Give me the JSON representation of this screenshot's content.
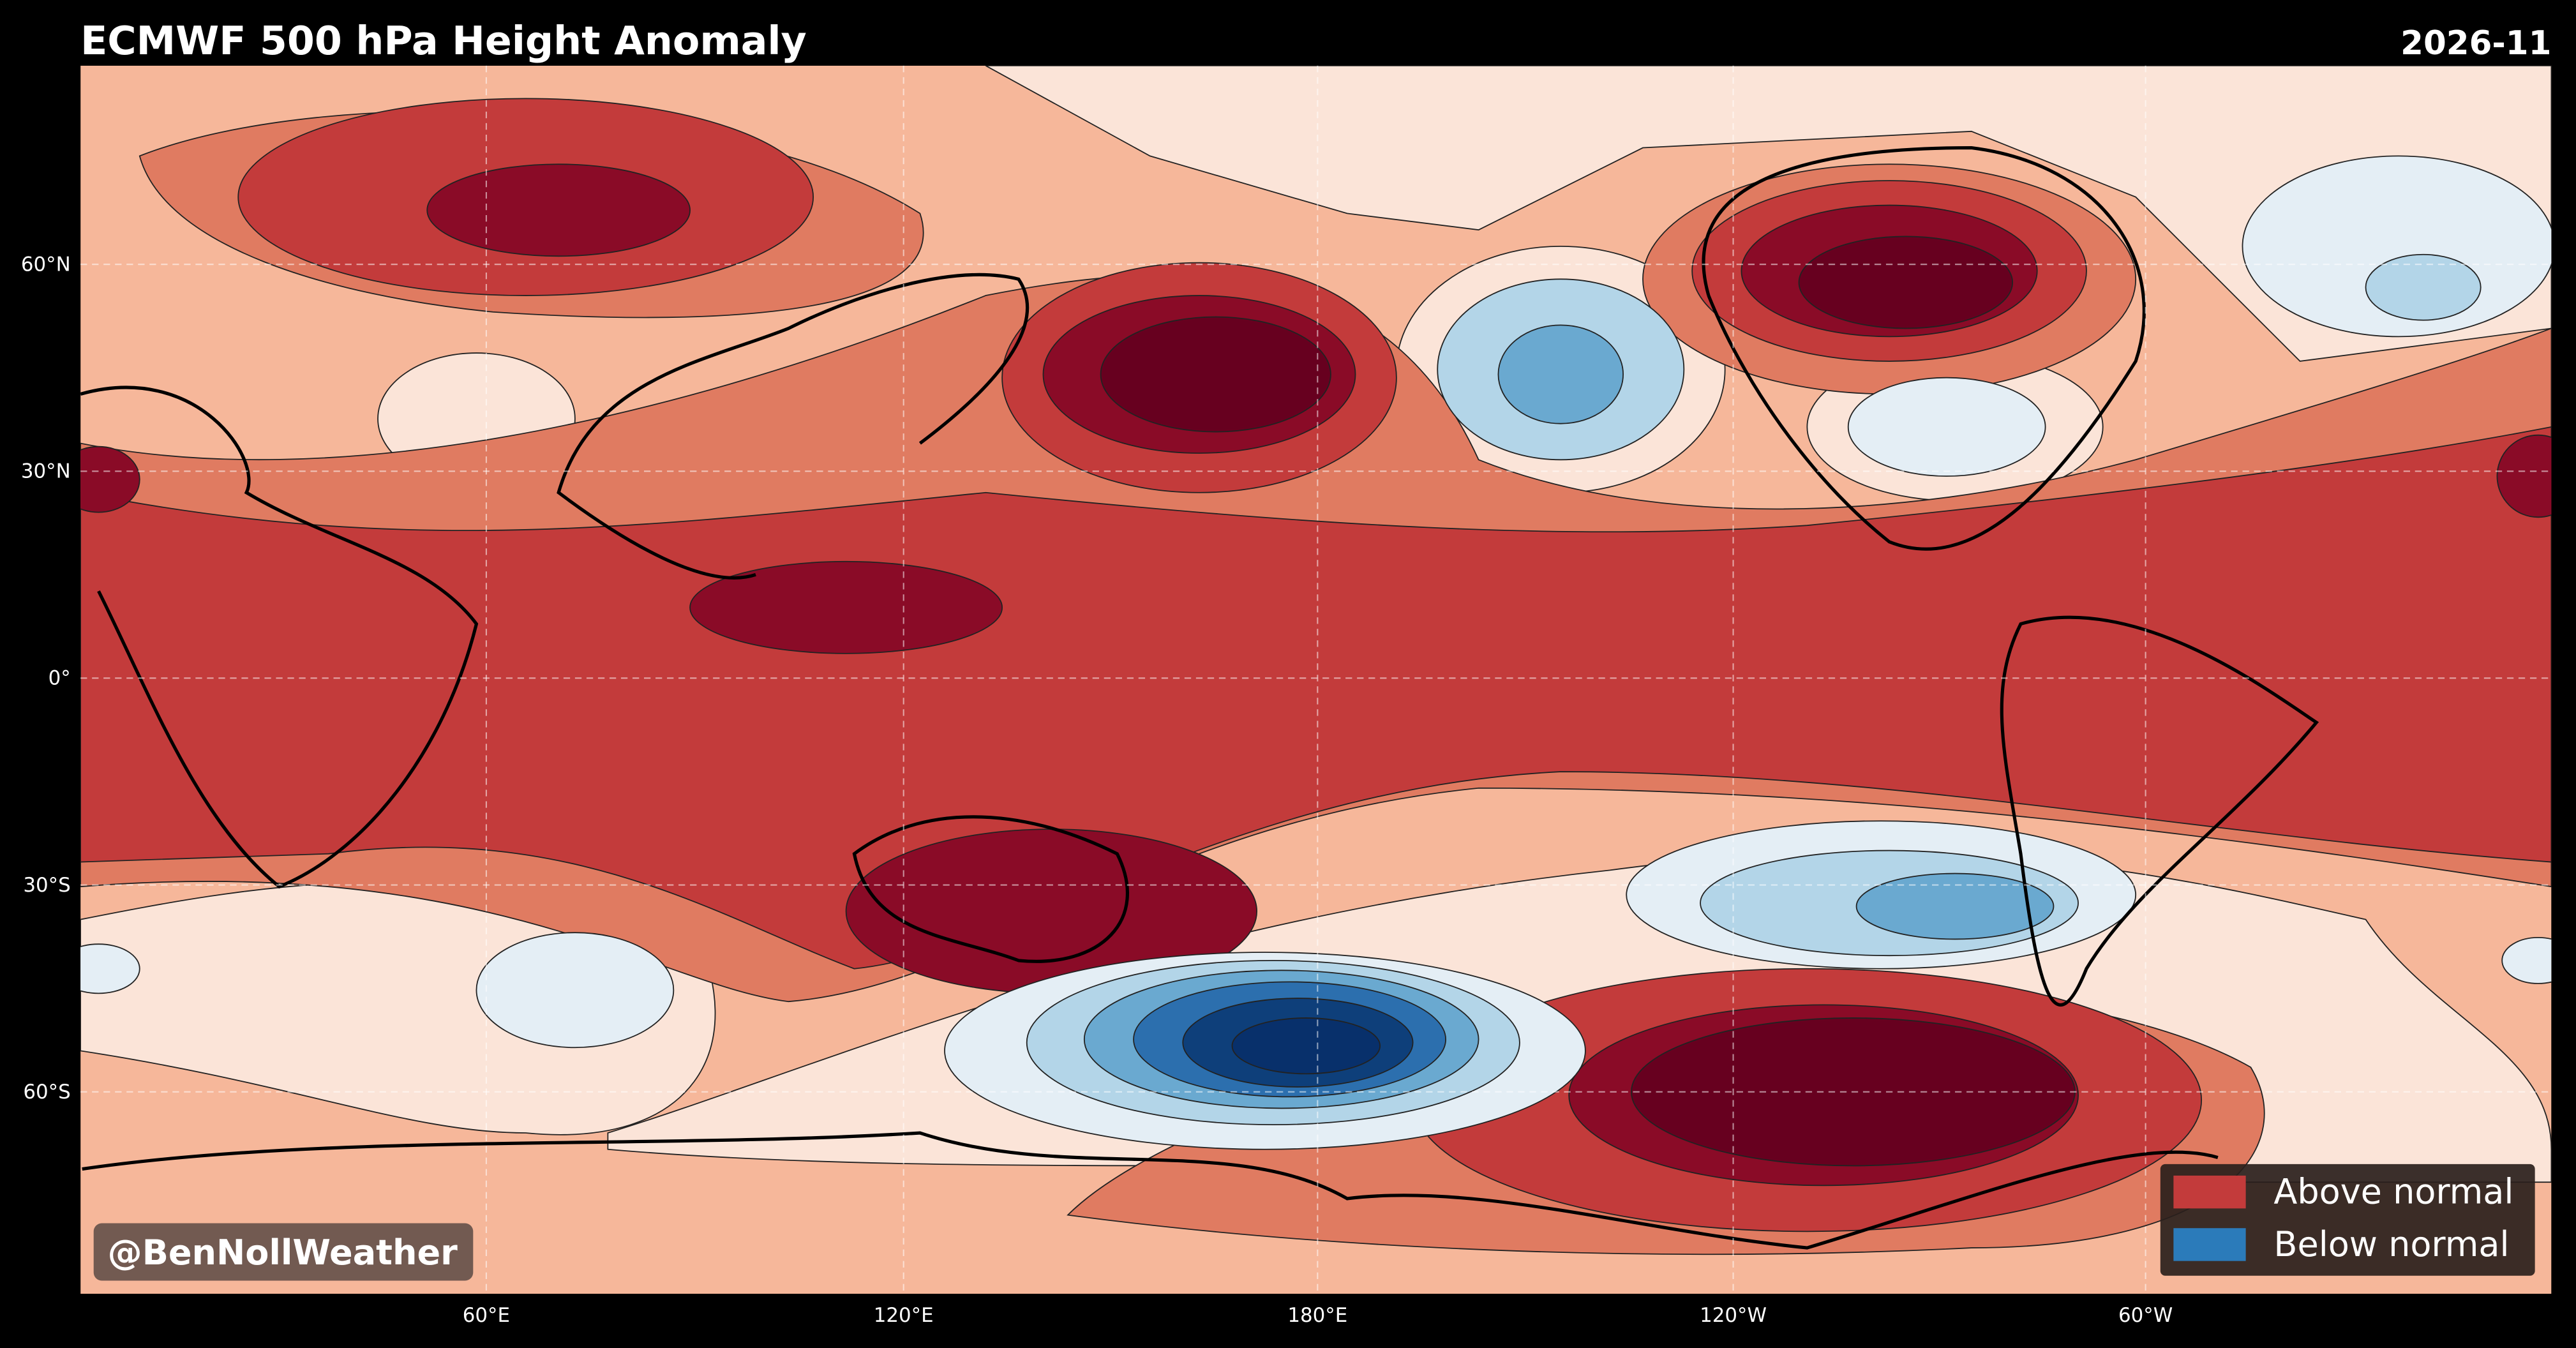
{
  "header": {
    "title": "ECMWF 500 hPa Height Anomaly",
    "date": "2026-11"
  },
  "map": {
    "lat_labels": [
      "60°N",
      "30°N",
      "0°",
      "30°S",
      "60°S"
    ],
    "lon_labels": [
      "60°E",
      "120°E",
      "180°E",
      "120°W",
      "60°W"
    ]
  },
  "legend": {
    "entries": [
      "Above normal",
      "Below normal"
    ]
  },
  "watermark": "@BenNollWeather"
}
